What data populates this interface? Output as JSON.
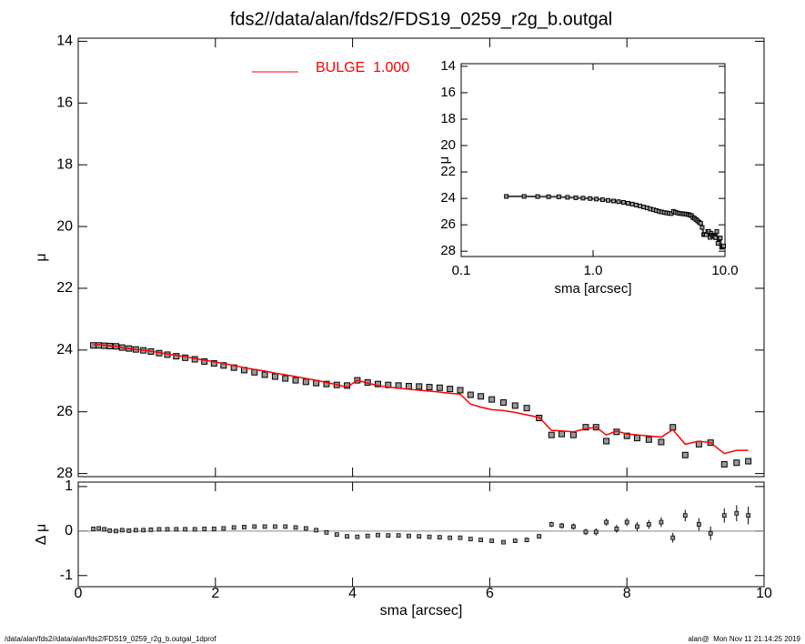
{
  "chart_data": [
    {
      "type": "scatter",
      "title": "fds2//data/alan/fds2/FDS19_0259_r2g_b.outgal",
      "ylabel": "μ",
      "xlim": [
        0,
        10
      ],
      "ylim": [
        28.1,
        13.9
      ],
      "yticks": [
        14,
        16,
        18,
        20,
        22,
        24,
        26,
        28
      ],
      "x": [
        0.22,
        0.3,
        0.38,
        0.46,
        0.55,
        0.64,
        0.74,
        0.84,
        0.95,
        1.06,
        1.18,
        1.3,
        1.43,
        1.56,
        1.7,
        1.84,
        1.98,
        2.12,
        2.27,
        2.42,
        2.57,
        2.72,
        2.87,
        3.02,
        3.17,
        3.32,
        3.47,
        3.62,
        3.77,
        3.92,
        4.07,
        4.22,
        4.37,
        4.52,
        4.67,
        4.82,
        4.97,
        5.12,
        5.27,
        5.42,
        5.57,
        5.72,
        5.87,
        6.03,
        6.2,
        6.37,
        6.54,
        6.72,
        6.9,
        7.05,
        7.22,
        7.4,
        7.55,
        7.7,
        7.85,
        8.0,
        8.15,
        8.32,
        8.5,
        8.67,
        8.85,
        9.05,
        9.22,
        9.42,
        9.6,
        9.77
      ],
      "series": [
        {
          "color": "#000000",
          "marker": "square",
          "values": [
            23.85,
            23.85,
            23.86,
            23.87,
            23.88,
            23.92,
            23.95,
            23.98,
            24.01,
            24.05,
            24.1,
            24.15,
            24.2,
            24.25,
            24.3,
            24.37,
            24.43,
            24.5,
            24.57,
            24.65,
            24.72,
            24.8,
            24.86,
            24.92,
            24.98,
            25.03,
            25.07,
            25.1,
            25.13,
            25.15,
            24.98,
            25.05,
            25.1,
            25.13,
            25.15,
            25.17,
            25.18,
            25.2,
            25.22,
            25.26,
            25.3,
            25.45,
            25.5,
            25.6,
            25.7,
            25.8,
            25.88,
            26.2,
            26.75,
            26.72,
            26.75,
            26.5,
            26.5,
            26.95,
            26.65,
            26.78,
            26.85,
            26.9,
            26.98,
            26.5,
            27.4,
            27.05,
            27.0,
            27.7,
            27.65,
            27.6
          ]
        },
        {
          "name": "BULGE  1.000",
          "color": "#ff0000",
          "values": [
            23.83,
            23.83,
            23.84,
            23.86,
            23.88,
            23.92,
            23.95,
            23.98,
            24.0,
            24.04,
            24.08,
            24.13,
            24.17,
            24.22,
            24.27,
            24.33,
            24.38,
            24.44,
            24.5,
            24.57,
            24.63,
            24.68,
            24.75,
            24.8,
            24.86,
            24.92,
            24.98,
            25.05,
            25.12,
            25.2,
            24.98,
            25.07,
            25.15,
            25.2,
            25.23,
            25.27,
            25.3,
            25.33,
            25.36,
            25.4,
            25.43,
            25.75,
            25.85,
            25.93,
            25.96,
            26.02,
            26.1,
            26.18,
            26.6,
            26.62,
            26.65,
            26.55,
            26.5,
            26.75,
            26.62,
            26.72,
            26.75,
            26.78,
            26.82,
            26.58,
            27.05,
            26.95,
            27.0,
            27.35,
            27.25,
            27.25
          ]
        }
      ]
    },
    {
      "type": "errorbar",
      "ylabel": "Δ μ",
      "xlabel": "sma [arcsec]",
      "xlim": [
        0,
        10
      ],
      "xticks": [
        0,
        2,
        4,
        6,
        8,
        10
      ],
      "ylim": [
        -1.25,
        1.1
      ],
      "yticks": [
        -1,
        0,
        1
      ],
      "hline": 0,
      "values": [
        0.05,
        0.06,
        0.04,
        0.01,
        0,
        0.02,
        0.01,
        0.02,
        0.02,
        0.03,
        0.04,
        0.04,
        0.04,
        0.04,
        0.04,
        0.05,
        0.05,
        0.06,
        0.08,
        0.09,
        0.1,
        0.1,
        0.1,
        0.1,
        0.08,
        0.06,
        0.02,
        -0.03,
        -0.08,
        -0.12,
        -0.13,
        -0.11,
        -0.09,
        -0.1,
        -0.1,
        -0.11,
        -0.12,
        -0.13,
        -0.14,
        -0.15,
        -0.15,
        -0.18,
        -0.2,
        -0.22,
        -0.25,
        -0.22,
        -0.2,
        -0.12,
        0.15,
        0.12,
        0.1,
        -0.02,
        -0.02,
        0.2,
        0.05,
        0.2,
        0.1,
        0.15,
        0.2,
        -0.15,
        0.35,
        0.15,
        -0.05,
        0.35,
        0.4,
        0.35
      ],
      "errors": [
        0.01,
        0.01,
        0.01,
        0.01,
        0.01,
        0.01,
        0.01,
        0.01,
        0.01,
        0.01,
        0.01,
        0.01,
        0.01,
        0.01,
        0.01,
        0.01,
        0.01,
        0.01,
        0.01,
        0.01,
        0.01,
        0.01,
        0.01,
        0.01,
        0.02,
        0.02,
        0.02,
        0.02,
        0.02,
        0.02,
        0.02,
        0.02,
        0.02,
        0.02,
        0.02,
        0.02,
        0.02,
        0.02,
        0.03,
        0.03,
        0.03,
        0.03,
        0.03,
        0.04,
        0.04,
        0.04,
        0.05,
        0.05,
        0.06,
        0.06,
        0.07,
        0.07,
        0.08,
        0.08,
        0.09,
        0.09,
        0.1,
        0.1,
        0.11,
        0.11,
        0.13,
        0.14,
        0.15,
        0.16,
        0.18,
        0.2
      ]
    },
    {
      "type": "scatter",
      "xlabel": "sma [arcsec]",
      "ylabel": "μ",
      "xlog": true,
      "xlim": [
        0.1,
        10
      ],
      "xticks": [
        0.1,
        {
          "value": 1,
          "label": "1.0"
        },
        {
          "value": 10,
          "label": "10.0"
        }
      ],
      "ylim": [
        28.4,
        13.8
      ],
      "yticks": [
        14,
        16,
        18,
        20,
        22,
        24,
        26,
        28
      ]
    }
  ],
  "footer": {
    "left": "/data/alan/fds2//data/alan/fds2/FDS19_0259_r2g_b.outgal_1dprof",
    "right": "alan@  Mon Nov 11 21:14:25 2019"
  }
}
